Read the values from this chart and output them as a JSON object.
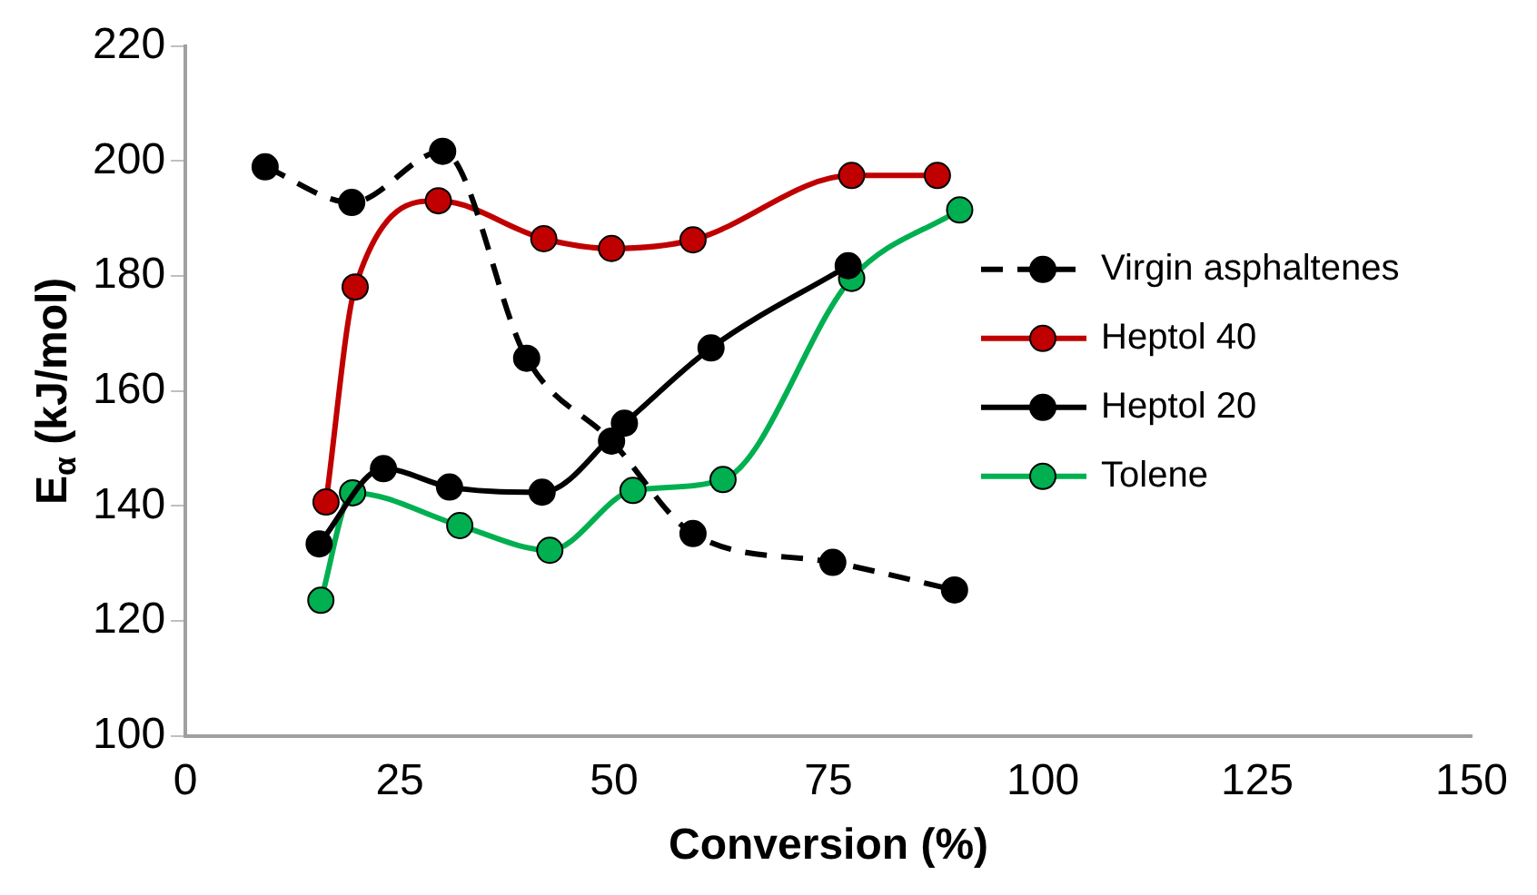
{
  "chart_data": {
    "type": "line",
    "xlabel": "Conversion (%)",
    "ylabel": "E$_{α}$ (kJ/mol)",
    "xlim": [
      0,
      150
    ],
    "xticks": [
      0,
      25,
      50,
      75,
      100,
      125,
      150
    ],
    "ylim": [
      100,
      220
    ],
    "yticks": [
      100,
      120,
      140,
      160,
      180,
      200,
      220
    ],
    "grid": false,
    "legend": "right",
    "marker": "circle",
    "series": [
      {
        "name": "Virgin asphaltenes",
        "color": "#000000",
        "line_style": "dashed",
        "x": [
          9.3,
          19.4,
          30,
          39.8,
          49.7,
          59.2,
          75.5,
          89.7
        ],
        "values": [
          199,
          192.8,
          201.7,
          165.7,
          151.3,
          135.2,
          130.2,
          125.4
        ]
      },
      {
        "name": "Heptol 40",
        "color": "#c00000",
        "line_style": "solid",
        "x": [
          16.4,
          19.8,
          29.5,
          41.8,
          49.7,
          59.2,
          77.7,
          87.7
        ],
        "values": [
          140.7,
          178.1,
          193.1,
          186.5,
          184.8,
          186.3,
          197.5,
          197.5
        ]
      },
      {
        "name": "Heptol 20",
        "color": "#000000",
        "line_style": "solid",
        "x": [
          15.6,
          23.1,
          30.8,
          41.6,
          51.2,
          61.3,
          77.3
        ],
        "values": [
          133.4,
          146.5,
          143.3,
          142.4,
          154.4,
          167.5,
          181.8
        ]
      },
      {
        "name": "Tolene",
        "color": "#00b050",
        "line_style": "solid",
        "x": [
          15.8,
          19.5,
          32,
          42.5,
          52.2,
          62.7,
          77.7,
          90.3
        ],
        "values": [
          123.6,
          142.3,
          136.6,
          132.3,
          142.7,
          144.6,
          179.6,
          191.5
        ]
      }
    ]
  }
}
